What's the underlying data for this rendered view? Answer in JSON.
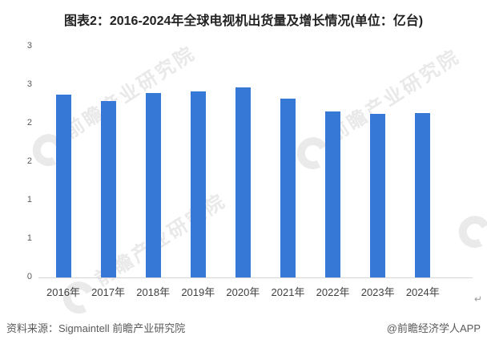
{
  "title": "图表2：2016-2024年全球电视机出货量及增长情况(单位：亿台)",
  "chart_data": {
    "type": "bar",
    "title": "图表2：2016-2024年全球电视机出货量及增长情况(单位：亿台)",
    "unit": "亿台",
    "categories": [
      "2016年",
      "2017年",
      "2018年",
      "2019年",
      "2020年",
      "2021年",
      "2022年",
      "2023年",
      "2024年"
    ],
    "values": [
      2.38,
      2.29,
      2.4,
      2.42,
      2.47,
      2.32,
      2.16,
      2.12,
      2.14
    ],
    "xlabel": "",
    "ylabel": "",
    "ylim": [
      0,
      3
    ],
    "y_tick_interval": 0.5,
    "y_tick_labels_top_to_bottom": [
      "3",
      "3",
      "2",
      "2",
      "1",
      "1",
      "0"
    ],
    "grid": false,
    "legend": "none",
    "bar_color": "#3578d5"
  },
  "watermark": {
    "text": "前瞻产业研究院",
    "dots": "· · · · · · · · ·",
    "logo": "qianzhan-logo-icon"
  },
  "footer": {
    "source": "资料来源：Sigmaintell 前瞻产业研究院",
    "credit": "@前瞻经济学人APP"
  },
  "misc": {
    "return_mark": "↵"
  },
  "colors": {
    "bar": "#3578d5",
    "axis_line": "#d4d4d4",
    "tick_text": "#595959",
    "title_text": "#222222",
    "footer_text": "#595959",
    "watermark": "#e9e9e9"
  }
}
